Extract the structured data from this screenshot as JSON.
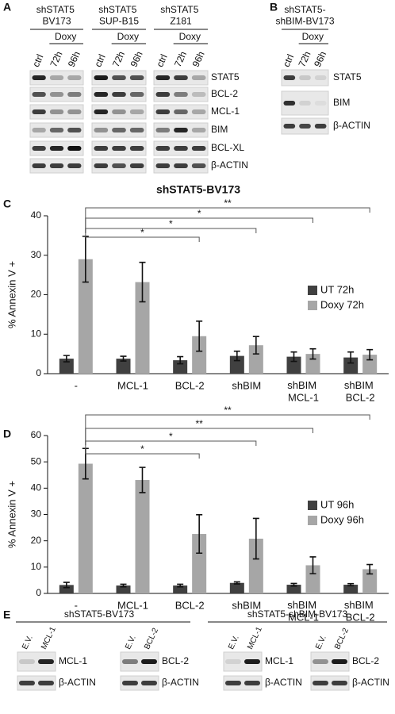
{
  "panel_a": {
    "letter": "A",
    "groups": [
      {
        "title": "shSTAT5 BV173",
        "treatment": "Doxy",
        "lanes": [
          "ctrl",
          "72h",
          "96h"
        ]
      },
      {
        "title": "shSTAT5 SUP-B15",
        "treatment": "Doxy",
        "lanes": [
          "ctrl",
          "72h",
          "96h"
        ]
      },
      {
        "title": "shSTAT5 Z181",
        "treatment": "Doxy",
        "lanes": [
          "ctrl",
          "72h",
          "96h"
        ]
      }
    ],
    "proteins": [
      "STAT5",
      "BCL-2",
      "MCL-1",
      "BIM",
      "BCL-XL",
      "β-ACTIN"
    ]
  },
  "panel_b": {
    "letter": "B",
    "groups": [
      {
        "title": "shSTAT5-shBIM-BV173",
        "treatment": "Doxy",
        "lanes": [
          "ctrl",
          "72h",
          "96h"
        ]
      }
    ],
    "proteins": [
      "STAT5",
      "BIM",
      "β-ACTIN"
    ]
  },
  "chart_data": [
    {
      "type": "bar",
      "panel_label": "C",
      "title": "shSTAT5-BV173",
      "y_label": "% Annexin V +",
      "categories": [
        "-",
        "MCL-1",
        "BCL-2",
        "shBIM",
        "shBIM MCL-1",
        "shBIM BCL-2"
      ],
      "series": [
        {
          "name": "UT 72h",
          "color": "#404040",
          "values": [
            3.8,
            3.8,
            3.4,
            4.5,
            4.3,
            4.1
          ],
          "errors": [
            0.8,
            0.6,
            0.9,
            1.2,
            1.2,
            1.4
          ]
        },
        {
          "name": "Doxy 72h",
          "color": "#a6a6a6",
          "values": [
            29,
            23.2,
            9.5,
            7.2,
            5,
            4.8
          ],
          "errors": [
            5.8,
            5,
            3.8,
            2.2,
            1.3,
            1.3
          ]
        }
      ],
      "ylim": [
        0,
        40
      ],
      "yticks": [
        0,
        10,
        20,
        30,
        40
      ],
      "significance": [
        "*",
        "*",
        "*",
        "**"
      ]
    },
    {
      "type": "bar",
      "panel_label": "D",
      "y_label": "% Annexin V +",
      "categories": [
        "-",
        "MCL-1",
        "BCL-2",
        "shBIM",
        "shBIM MCL-1",
        "shBIM BCL-2"
      ],
      "series": [
        {
          "name": "UT 96h",
          "color": "#404040",
          "values": [
            3.2,
            3,
            3,
            4,
            3.3,
            3.3
          ],
          "errors": [
            1,
            0.5,
            0.5,
            0.4,
            0.5,
            0.4
          ]
        },
        {
          "name": "Doxy 96h",
          "color": "#a6a6a6",
          "values": [
            49.3,
            43.1,
            22.6,
            20.8,
            10.7,
            9.2
          ],
          "errors": [
            5.8,
            4.8,
            7.3,
            7.7,
            3.2,
            1.8
          ]
        }
      ],
      "ylim": [
        0,
        60
      ],
      "yticks": [
        0,
        10,
        20,
        30,
        40,
        50,
        60
      ],
      "significance": [
        "*",
        "*",
        "**",
        "**"
      ]
    }
  ],
  "panel_e": {
    "letter": "E",
    "groups": [
      {
        "title": "shSTAT5-BV173",
        "blots": [
          {
            "lanes": [
              "E.V.",
              "MCL-1"
            ],
            "proteins": [
              "MCL-1",
              "β-ACTIN"
            ]
          },
          {
            "lanes": [
              "E.V.",
              "BCL-2"
            ],
            "proteins": [
              "BCL-2",
              "β-ACTIN"
            ]
          }
        ]
      },
      {
        "title": "shSTAT5-shBIM-BV173",
        "blots": [
          {
            "lanes": [
              "E.V.",
              "MCL-1"
            ],
            "proteins": [
              "MCL-1",
              "β-ACTIN"
            ]
          },
          {
            "lanes": [
              "E.V.",
              "BCL-2"
            ],
            "proteins": [
              "BCL-2",
              "β-ACTIN"
            ]
          }
        ]
      }
    ]
  }
}
